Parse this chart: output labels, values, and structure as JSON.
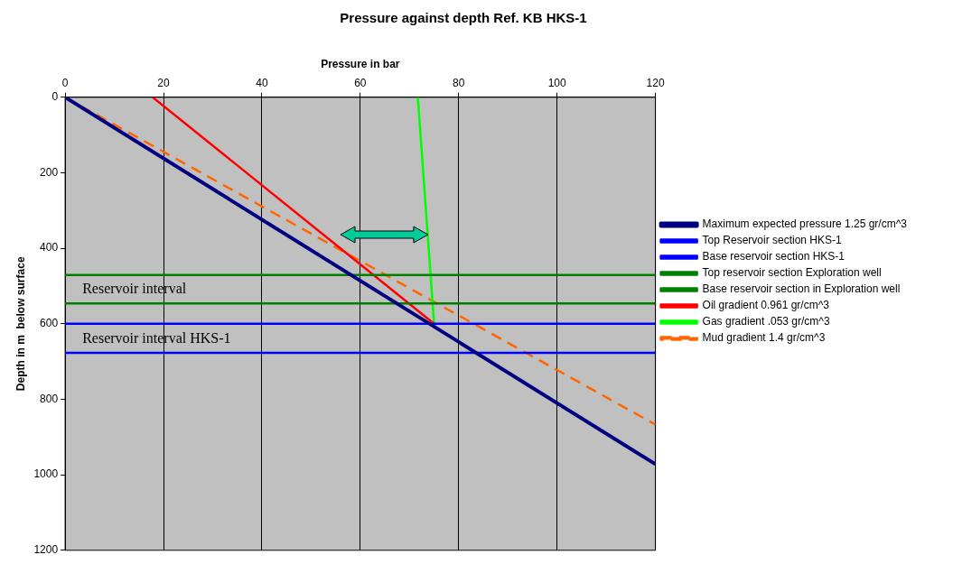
{
  "chart_data": {
    "type": "line",
    "title": "Pressure against depth Ref. KB HKS-1",
    "xlabel": "Pressure in bar",
    "ylabel": "Depth in m  below surface",
    "xlim": [
      0,
      120
    ],
    "xticks": [
      0,
      20,
      40,
      60,
      80,
      100,
      120
    ],
    "ylim": [
      1200,
      0
    ],
    "yticks": [
      0,
      200,
      400,
      600,
      800,
      1000,
      1200
    ],
    "grid": "x",
    "legend": "right",
    "line_style": "solid",
    "marker": "none",
    "series": [
      {
        "name": "Maximum expected pressure 1.25 gr/cm^3",
        "color": "#000080",
        "x": [
          0,
          120
        ],
        "values": [
          0,
          972
        ]
      },
      {
        "name": "Top Reservoir section HKS-1",
        "color": "#0000ff",
        "x": [
          0,
          120
        ],
        "values": [
          600,
          600
        ]
      },
      {
        "name": "Base reservoir section HKS-1",
        "color": "#0000ff",
        "x": [
          0,
          120
        ],
        "values": [
          677,
          677
        ]
      },
      {
        "name": "Top reservoir section Exploration well",
        "color": "#008000",
        "x": [
          0,
          120
        ],
        "values": [
          471,
          471
        ]
      },
      {
        "name": "Base reservoir section in Exploration well",
        "color": "#008000",
        "x": [
          0,
          120
        ],
        "values": [
          546,
          546
        ]
      },
      {
        "name": "Oil gradient 0.961 gr/cm^3",
        "color": "#ff0000",
        "x": [
          17.8,
          75
        ],
        "values": [
          0,
          600
        ]
      },
      {
        "name": "Gas gradient .053 gr/cm^3",
        "color": "#00ff00",
        "x": [
          71.7,
          75
        ],
        "values": [
          0,
          600
        ]
      },
      {
        "name": "Mud gradient 1.4 gr/cm^3",
        "color": "#ff6600",
        "line_style": "dashed",
        "x": [
          0,
          120
        ],
        "values": [
          0,
          867
        ]
      }
    ],
    "annotations": [
      "Reservoir interval",
      "Reservoir interval HKS-1"
    ]
  }
}
